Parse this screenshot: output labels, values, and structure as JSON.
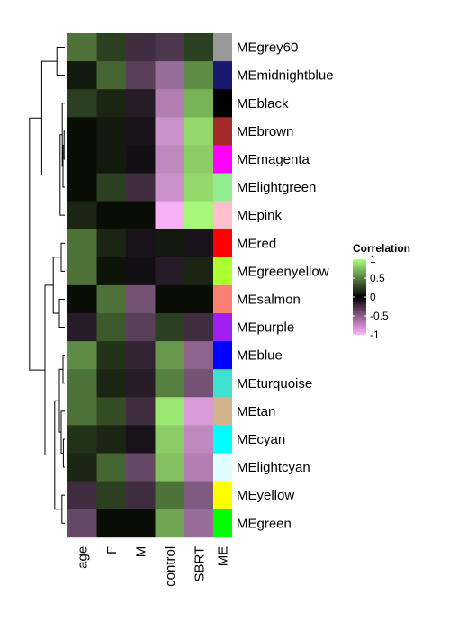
{
  "chart_data": {
    "type": "heatmap",
    "columns": [
      "age",
      "F",
      "M",
      "control",
      "SBRT"
    ],
    "annotation_column": "ME",
    "rows": [
      {
        "name": "MEgrey60",
        "color": "#999999",
        "values": [
          0.45,
          0.25,
          -0.25,
          -0.3,
          0.25
        ]
      },
      {
        "name": "MEmidnightblue",
        "color": "#191970",
        "values": [
          0.1,
          0.4,
          -0.35,
          -0.6,
          0.55
        ]
      },
      {
        "name": "MEblack",
        "color": "#000000",
        "values": [
          0.25,
          0.15,
          -0.15,
          -0.7,
          0.7
        ]
      },
      {
        "name": "MEbrown",
        "color": "#A52A2A",
        "values": [
          0.05,
          0.1,
          -0.1,
          -0.8,
          0.85
        ]
      },
      {
        "name": "MEmagenta",
        "color": "#FF00FF",
        "values": [
          0.05,
          0.1,
          -0.08,
          -0.75,
          0.8
        ]
      },
      {
        "name": "MElightgreen",
        "color": "#90EE90",
        "values": [
          0.05,
          0.25,
          -0.25,
          -0.8,
          0.85
        ]
      },
      {
        "name": "MEpink",
        "color": "#FFC0CB",
        "values": [
          0.15,
          0.05,
          0.05,
          -0.97,
          0.97
        ]
      },
      {
        "name": "MEred",
        "color": "#FF0000",
        "values": [
          0.45,
          0.15,
          -0.1,
          0.1,
          -0.1
        ]
      },
      {
        "name": "MEgreenyellow",
        "color": "#ADFF2F",
        "values": [
          0.45,
          0.08,
          -0.08,
          -0.15,
          0.15
        ]
      },
      {
        "name": "MEsalmon",
        "color": "#FA8072",
        "values": [
          0.05,
          0.45,
          -0.45,
          0.05,
          0.05
        ]
      },
      {
        "name": "MEpurple",
        "color": "#A020F0",
        "values": [
          -0.15,
          0.35,
          -0.35,
          0.25,
          -0.25
        ]
      },
      {
        "name": "MEblue",
        "color": "#0000FF",
        "values": [
          0.55,
          0.2,
          -0.2,
          0.6,
          -0.55
        ]
      },
      {
        "name": "MEturquoise",
        "color": "#40E0D0",
        "values": [
          0.45,
          0.15,
          -0.15,
          0.5,
          -0.45
        ]
      },
      {
        "name": "MEtan",
        "color": "#D2B48C",
        "values": [
          0.45,
          0.3,
          -0.25,
          0.9,
          -0.85
        ]
      },
      {
        "name": "MEcyan",
        "color": "#00FFFF",
        "values": [
          0.2,
          0.15,
          -0.1,
          0.8,
          -0.75
        ]
      },
      {
        "name": "MElightcyan",
        "color": "#E0FFFF",
        "values": [
          0.15,
          0.4,
          -0.4,
          0.75,
          -0.7
        ]
      },
      {
        "name": "MEyellow",
        "color": "#FFFF00",
        "values": [
          -0.25,
          0.25,
          -0.25,
          0.45,
          -0.5
        ]
      },
      {
        "name": "MEgreen",
        "color": "#00FF00",
        "values": [
          -0.4,
          0.05,
          0.05,
          0.65,
          -0.6
        ]
      }
    ],
    "legend": {
      "title": "Correlation",
      "ticks": [
        1,
        0.5,
        0,
        -0.5,
        -1
      ],
      "tick_labels": [
        "1",
        "0.5",
        "0",
        "-0.5",
        "-1"
      ],
      "placement": "right"
    },
    "value_range": [
      -1,
      1
    ],
    "color_scale": {
      "low": "#FFB6FF",
      "mid": "#000000",
      "high": "#ADFF7F"
    },
    "dendrogram_side": "left"
  }
}
